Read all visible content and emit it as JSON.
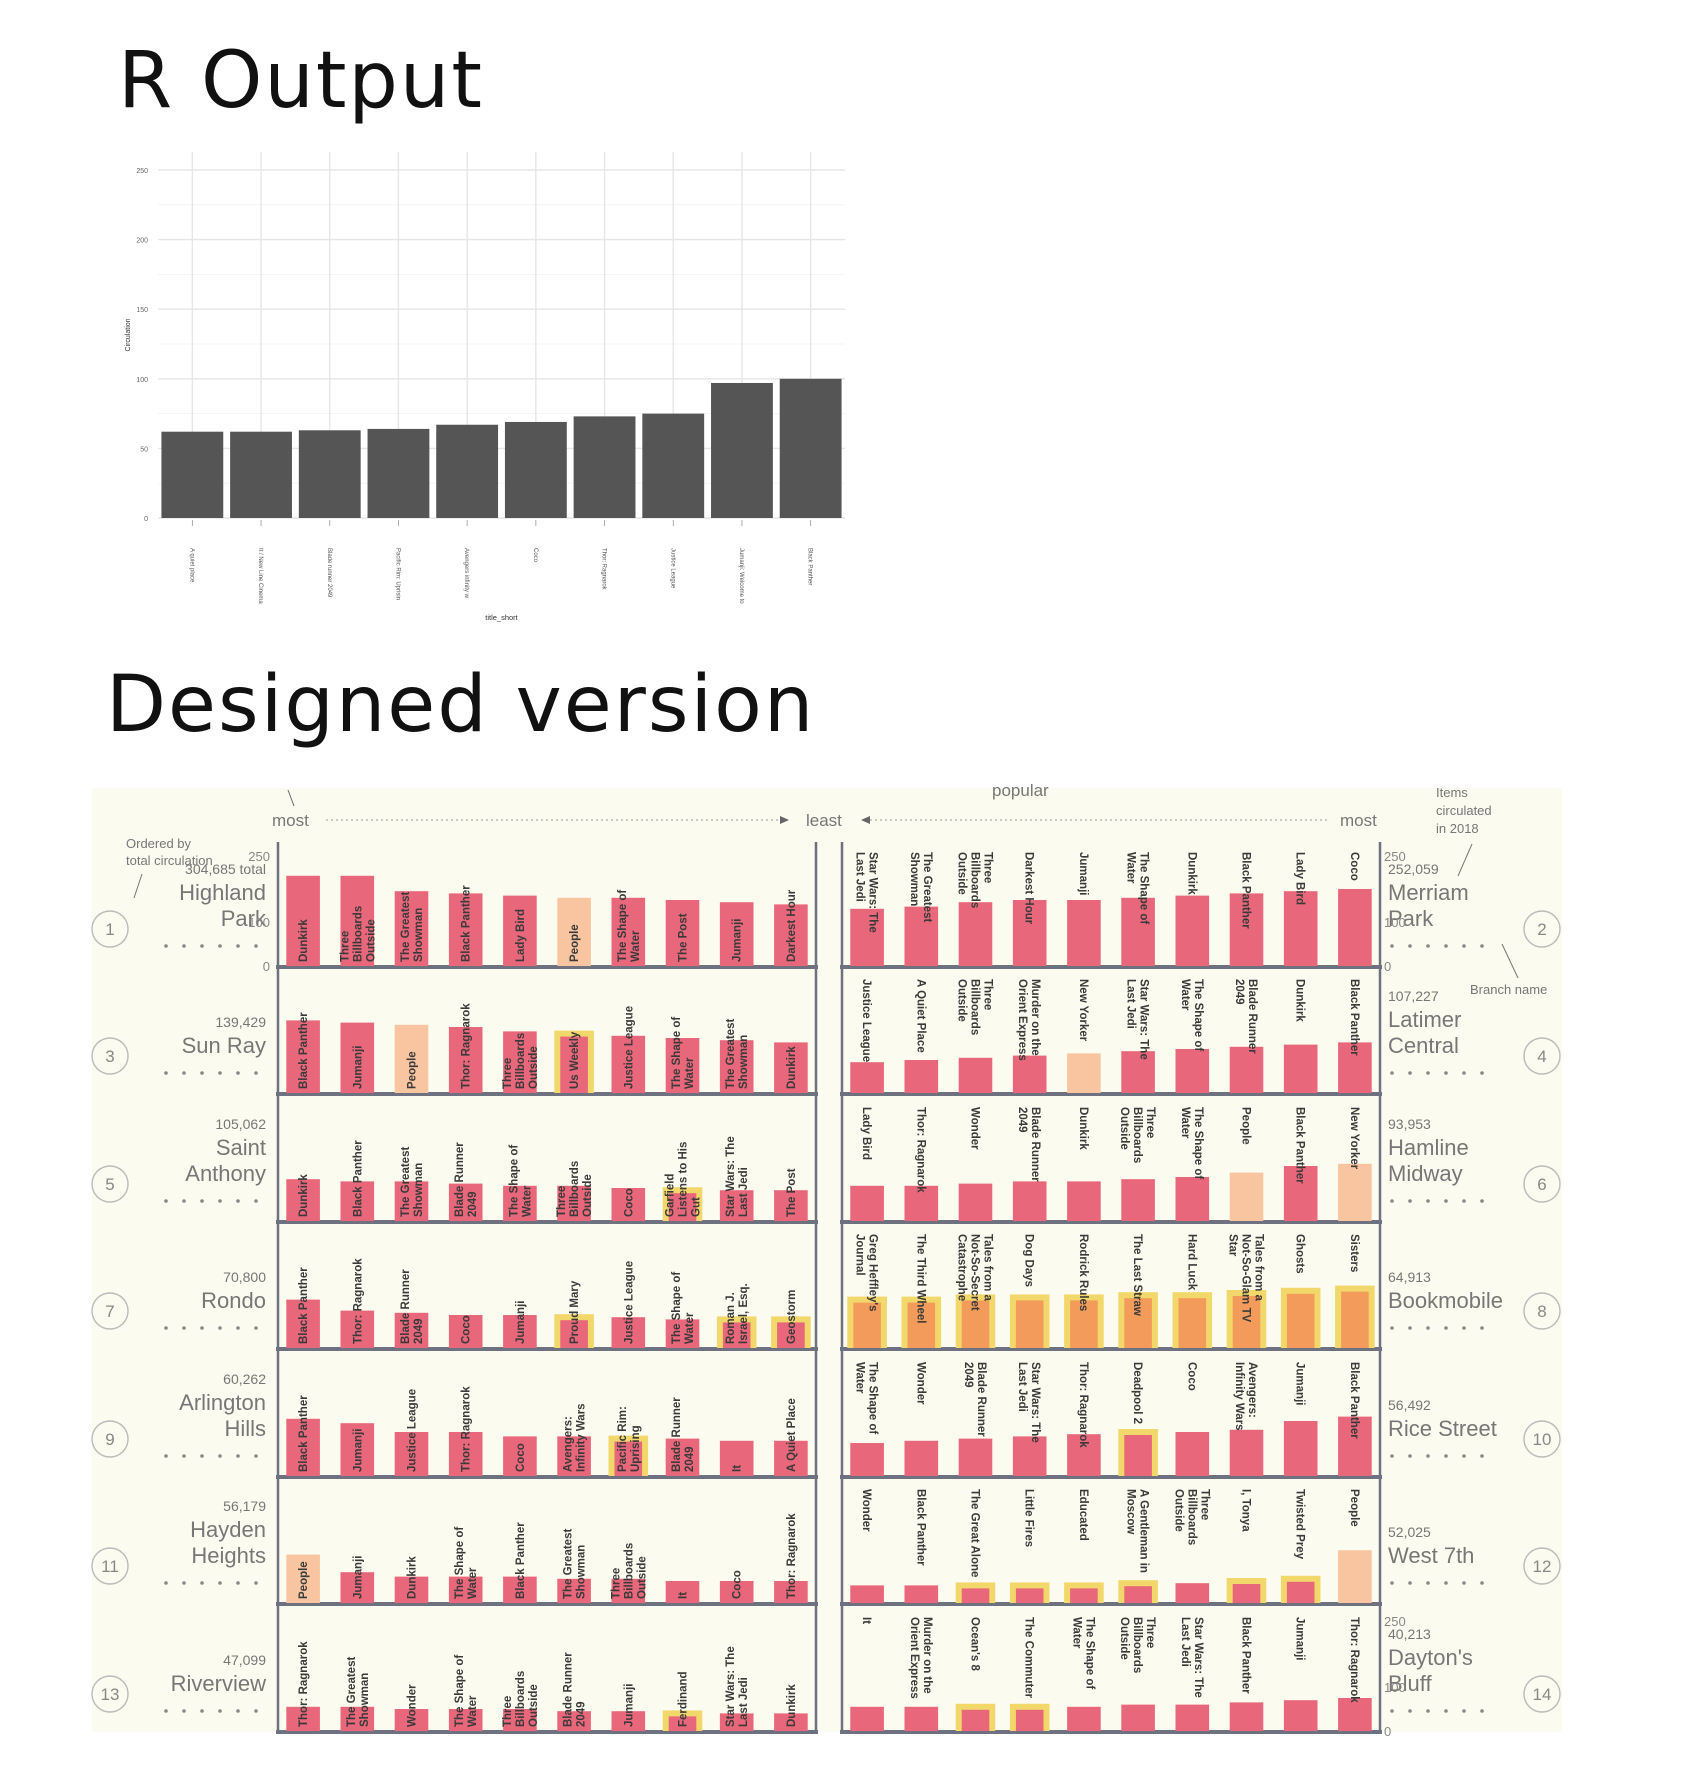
{
  "headings": {
    "r_output": "R Output",
    "designed": "Designed version"
  },
  "chart_data": [
    {
      "type": "bar",
      "panel": "R Output",
      "categories": [
        "A quiet place",
        "It / New Line Cinema",
        "Blade runner 2049",
        "Pacific Rim: Uprisin",
        "Avengers infinity w",
        "Coco",
        "Thor: Ragnarok",
        "Justice League",
        "Jumanji: Welcome to",
        "Black Panther"
      ],
      "values": [
        62,
        62,
        63,
        64,
        67,
        69,
        73,
        75,
        97,
        100
      ],
      "xlabel": "title_short",
      "ylabel": "Circulation",
      "ylim": [
        0,
        250
      ],
      "yticks": [
        "0",
        "50",
        "100",
        "150",
        "200",
        "250"
      ],
      "grid": true,
      "bar_color": "#555555"
    },
    {
      "type": "bar",
      "panel": "Designed version",
      "ylim": [
        0,
        250
      ],
      "scale_ticks": [
        "0",
        "100",
        "250"
      ],
      "header": {
        "left_most": "most",
        "least": "least",
        "right_most": "most",
        "popular": "popular"
      },
      "annotations": {
        "ordered_by": [
          "Ordered by",
          "total circulation"
        ],
        "items_circulated": [
          "Items",
          "circulated",
          "in 2018"
        ],
        "branch_name": "Branch name"
      },
      "colors": {
        "pink": "#e8677a",
        "peach": "#f8c5a0",
        "orange": "#f39b5a",
        "yellow": "#f2d86a",
        "shelf": "#6e7180",
        "text": "#4d4d4d",
        "bg": "#fbfbef"
      },
      "branches": [
        {
          "num": "1",
          "name": [
            "Highland",
            "Park"
          ],
          "total": "304,685 total",
          "side": "left",
          "titles": [
            "Dunkirk",
            "Three Billboards Outside Ebbing, Missouri",
            "The Greatest Showman",
            "Black Panther",
            "Lady Bird",
            "People",
            "The Shape of Water",
            "The Post",
            "Jumanji",
            "Darkest Hour"
          ],
          "values": [
            205,
            205,
            170,
            165,
            160,
            155,
            155,
            150,
            145,
            140
          ],
          "kind": [
            "p",
            "p",
            "p",
            "p",
            "p",
            "m",
            "p",
            "p",
            "p",
            "p"
          ]
        },
        {
          "num": "2",
          "name": [
            "Merriam",
            "Park"
          ],
          "total": "252,059",
          "side": "right",
          "titles": [
            "Star Wars: The Last Jedi",
            "The Greatest Showman",
            "Three Billboards Outside Ebbing, Missouri",
            "Darkest Hour",
            "Jumanji",
            "The Shape of Water",
            "Dunkirk",
            "Black Panther",
            "Lady Bird",
            "Coco"
          ],
          "values": [
            130,
            135,
            145,
            150,
            150,
            155,
            160,
            165,
            170,
            175
          ],
          "kind": [
            "p",
            "p",
            "p",
            "p",
            "p",
            "p",
            "p",
            "p",
            "p",
            "p"
          ]
        },
        {
          "num": "3",
          "name": [
            "Sun Ray"
          ],
          "total": "139,429",
          "side": "left",
          "titles": [
            "Black Panther",
            "Jumanji",
            "People",
            "Thor: Ragnarok",
            "Three Billboards Outside Ebbing, Missouri",
            "Us Weekly",
            "Justice League",
            "The Shape of Water",
            "The Greatest Showman",
            "Dunkirk"
          ],
          "values": [
            165,
            160,
            155,
            150,
            140,
            135,
            130,
            125,
            120,
            115
          ],
          "kind": [
            "p",
            "p",
            "m",
            "p",
            "p",
            "y",
            "p",
            "p",
            "p",
            "p"
          ]
        },
        {
          "num": "4",
          "name": [
            "Latimer",
            "Central"
          ],
          "total": "107,227",
          "side": "right",
          "titles": [
            "Justice League",
            "A Quiet Place",
            "Three Billboards Outside Ebbing, Missouri",
            "Murder on the Orient Express",
            "New Yorker",
            "Star Wars: The Last Jedi",
            "The Shape of Water",
            "Blade Runner 2049",
            "Dunkirk",
            "Black Panther"
          ],
          "values": [
            70,
            75,
            80,
            85,
            90,
            95,
            100,
            105,
            110,
            115
          ],
          "kind": [
            "p",
            "p",
            "p",
            "p",
            "m",
            "p",
            "p",
            "p",
            "p",
            "p"
          ]
        },
        {
          "num": "5",
          "name": [
            "Saint",
            "Anthony"
          ],
          "total": "105,062",
          "side": "left",
          "titles": [
            "Dunkirk",
            "Black Panther",
            "The Greatest Showman",
            "Blade Runner 2049",
            "The Shape of Water",
            "Three Billboards Outside Ebbing, Missouri",
            "Coco",
            "Garfield Listens to His Gut",
            "Star Wars: The Last Jedi",
            "The Post"
          ],
          "values": [
            95,
            90,
            90,
            85,
            80,
            80,
            75,
            70,
            70,
            70
          ],
          "kind": [
            "p",
            "p",
            "p",
            "p",
            "p",
            "p",
            "p",
            "y",
            "p",
            "p"
          ]
        },
        {
          "num": "6",
          "name": [
            "Hamline",
            "Midway"
          ],
          "total": "93,953",
          "side": "right",
          "titles": [
            "Lady Bird",
            "Thor: Ragnarok",
            "Wonder",
            "Blade Runner 2049",
            "Dunkirk",
            "Three Billboards Outside Ebbing, Missouri",
            "The Shape of Water",
            "People",
            "Black Panther",
            "New Yorker"
          ],
          "values": [
            80,
            80,
            85,
            90,
            90,
            95,
            100,
            110,
            125,
            130
          ],
          "kind": [
            "p",
            "p",
            "p",
            "p",
            "p",
            "p",
            "p",
            "m",
            "p",
            "m"
          ]
        },
        {
          "num": "7",
          "name": [
            "Rondo"
          ],
          "total": "70,800",
          "side": "left",
          "titles": [
            "Black Panther",
            "Thor: Ragnarok",
            "Blade Runner 2049",
            "Coco",
            "Jumanji",
            "Proud Mary",
            "Justice League",
            "The Shape of Water",
            "Roman J. Israel, Esq.",
            "Geostorm"
          ],
          "values": [
            110,
            85,
            80,
            75,
            75,
            70,
            70,
            65,
            65,
            65
          ],
          "kind": [
            "p",
            "p",
            "p",
            "p",
            "p",
            "y",
            "p",
            "p",
            "y",
            "y"
          ]
        },
        {
          "num": "8",
          "name": [
            "Bookmobile"
          ],
          "total": "64,913",
          "side": "right",
          "titles": [
            "Greg Heffley's Journal",
            "The Third Wheel",
            "Tales from a Not-So-Secret Catastrophe",
            "Dog Days",
            "Rodrick Rules",
            "The Last Straw",
            "Hard Luck",
            "Tales from a Not-So-Glam TV Star",
            "Ghosts",
            "Sisters"
          ],
          "values": [
            110,
            110,
            115,
            115,
            115,
            120,
            120,
            125,
            130,
            135
          ],
          "kind": [
            "o",
            "o",
            "o",
            "o",
            "o",
            "o",
            "o",
            "o",
            "o",
            "o"
          ]
        },
        {
          "num": "9",
          "name": [
            "Arlington",
            "Hills"
          ],
          "total": "60,262",
          "side": "left",
          "titles": [
            "Black Panther",
            "Jumanji",
            "Justice League",
            "Thor: Ragnarok",
            "Coco",
            "Avengers: Infinity Wars",
            "Pacific Rim: Uprising",
            "Blade Runner 2049",
            "It",
            "A Quiet Place"
          ],
          "values": [
            130,
            120,
            100,
            100,
            90,
            90,
            85,
            85,
            80,
            80
          ],
          "kind": [
            "p",
            "p",
            "p",
            "p",
            "p",
            "p",
            "y",
            "p",
            "p",
            "p"
          ]
        },
        {
          "num": "10",
          "name": [
            "Rice Street"
          ],
          "total": "56,492",
          "side": "right",
          "titles": [
            "The Shape of Water",
            "Wonder",
            "Blade Runner 2049",
            "Star Wars: The Last Jedi",
            "Thor: Ragnarok",
            "Deadpool 2",
            "Coco",
            "Avengers: Infinity Wars",
            "Jumanji",
            "Black Panther"
          ],
          "values": [
            75,
            80,
            85,
            90,
            95,
            100,
            100,
            105,
            125,
            135
          ],
          "kind": [
            "p",
            "p",
            "p",
            "p",
            "p",
            "y",
            "p",
            "p",
            "p",
            "p"
          ]
        },
        {
          "num": "11",
          "name": [
            "Hayden",
            "Heights"
          ],
          "total": "56,179",
          "side": "left",
          "titles": [
            "People",
            "Jumanji",
            "Dunkirk",
            "The Shape of Water",
            "Black Panther",
            "The Greatest Showman",
            "Three Billboards Outside Ebbing, Missouri",
            "It",
            "Coco",
            "Thor: Ragnarok"
          ],
          "values": [
            110,
            70,
            60,
            60,
            60,
            55,
            55,
            50,
            50,
            50
          ],
          "kind": [
            "m",
            "p",
            "p",
            "p",
            "p",
            "p",
            "p",
            "p",
            "p",
            "p"
          ]
        },
        {
          "num": "12",
          "name": [
            "West 7th"
          ],
          "total": "52,025",
          "side": "right",
          "titles": [
            "Wonder",
            "Black Panther",
            "The Great Alone",
            "Little Fires",
            "Educated",
            "A Gentleman in Moscow",
            "Three Billboards Outside Ebbing, Missouri",
            "I, Tonya",
            "Twisted Prey",
            "People"
          ],
          "values": [
            40,
            40,
            40,
            40,
            40,
            45,
            45,
            50,
            55,
            120
          ],
          "kind": [
            "p",
            "p",
            "y",
            "y",
            "y",
            "y",
            "p",
            "y",
            "y",
            "m"
          ]
        },
        {
          "num": "13",
          "name": [
            "Riverview"
          ],
          "total": "47,099",
          "side": "left",
          "titles": [
            "Thor: Ragnarok",
            "The Greatest Showman",
            "Wonder",
            "The Shape of Water",
            "Three Billboards Outside Ebbing, Missouri",
            "Blade Runner 2049",
            "Jumanji",
            "Ferdinand",
            "Star Wars: The Last Jedi",
            "Dunkirk"
          ],
          "values": [
            55,
            55,
            50,
            50,
            50,
            45,
            45,
            40,
            40,
            40
          ],
          "kind": [
            "p",
            "p",
            "p",
            "p",
            "p",
            "p",
            "p",
            "y",
            "p",
            "p"
          ]
        },
        {
          "num": "14",
          "name": [
            "Dayton's",
            "Bluff"
          ],
          "total": "40,213",
          "side": "right",
          "titles": [
            "It",
            "Murder on the Orient Express",
            "Ocean's 8",
            "The Commuter",
            "The Shape of Water",
            "Three Billboards Outside Ebbing, Missouri",
            "Star Wars: The Last Jedi",
            "Black Panther",
            "Jumanji",
            "Thor: Ragnarok"
          ],
          "values": [
            55,
            55,
            55,
            55,
            55,
            60,
            60,
            65,
            70,
            75
          ],
          "kind": [
            "p",
            "p",
            "y",
            "y",
            "p",
            "p",
            "p",
            "p",
            "p",
            "p"
          ]
        }
      ]
    }
  ]
}
